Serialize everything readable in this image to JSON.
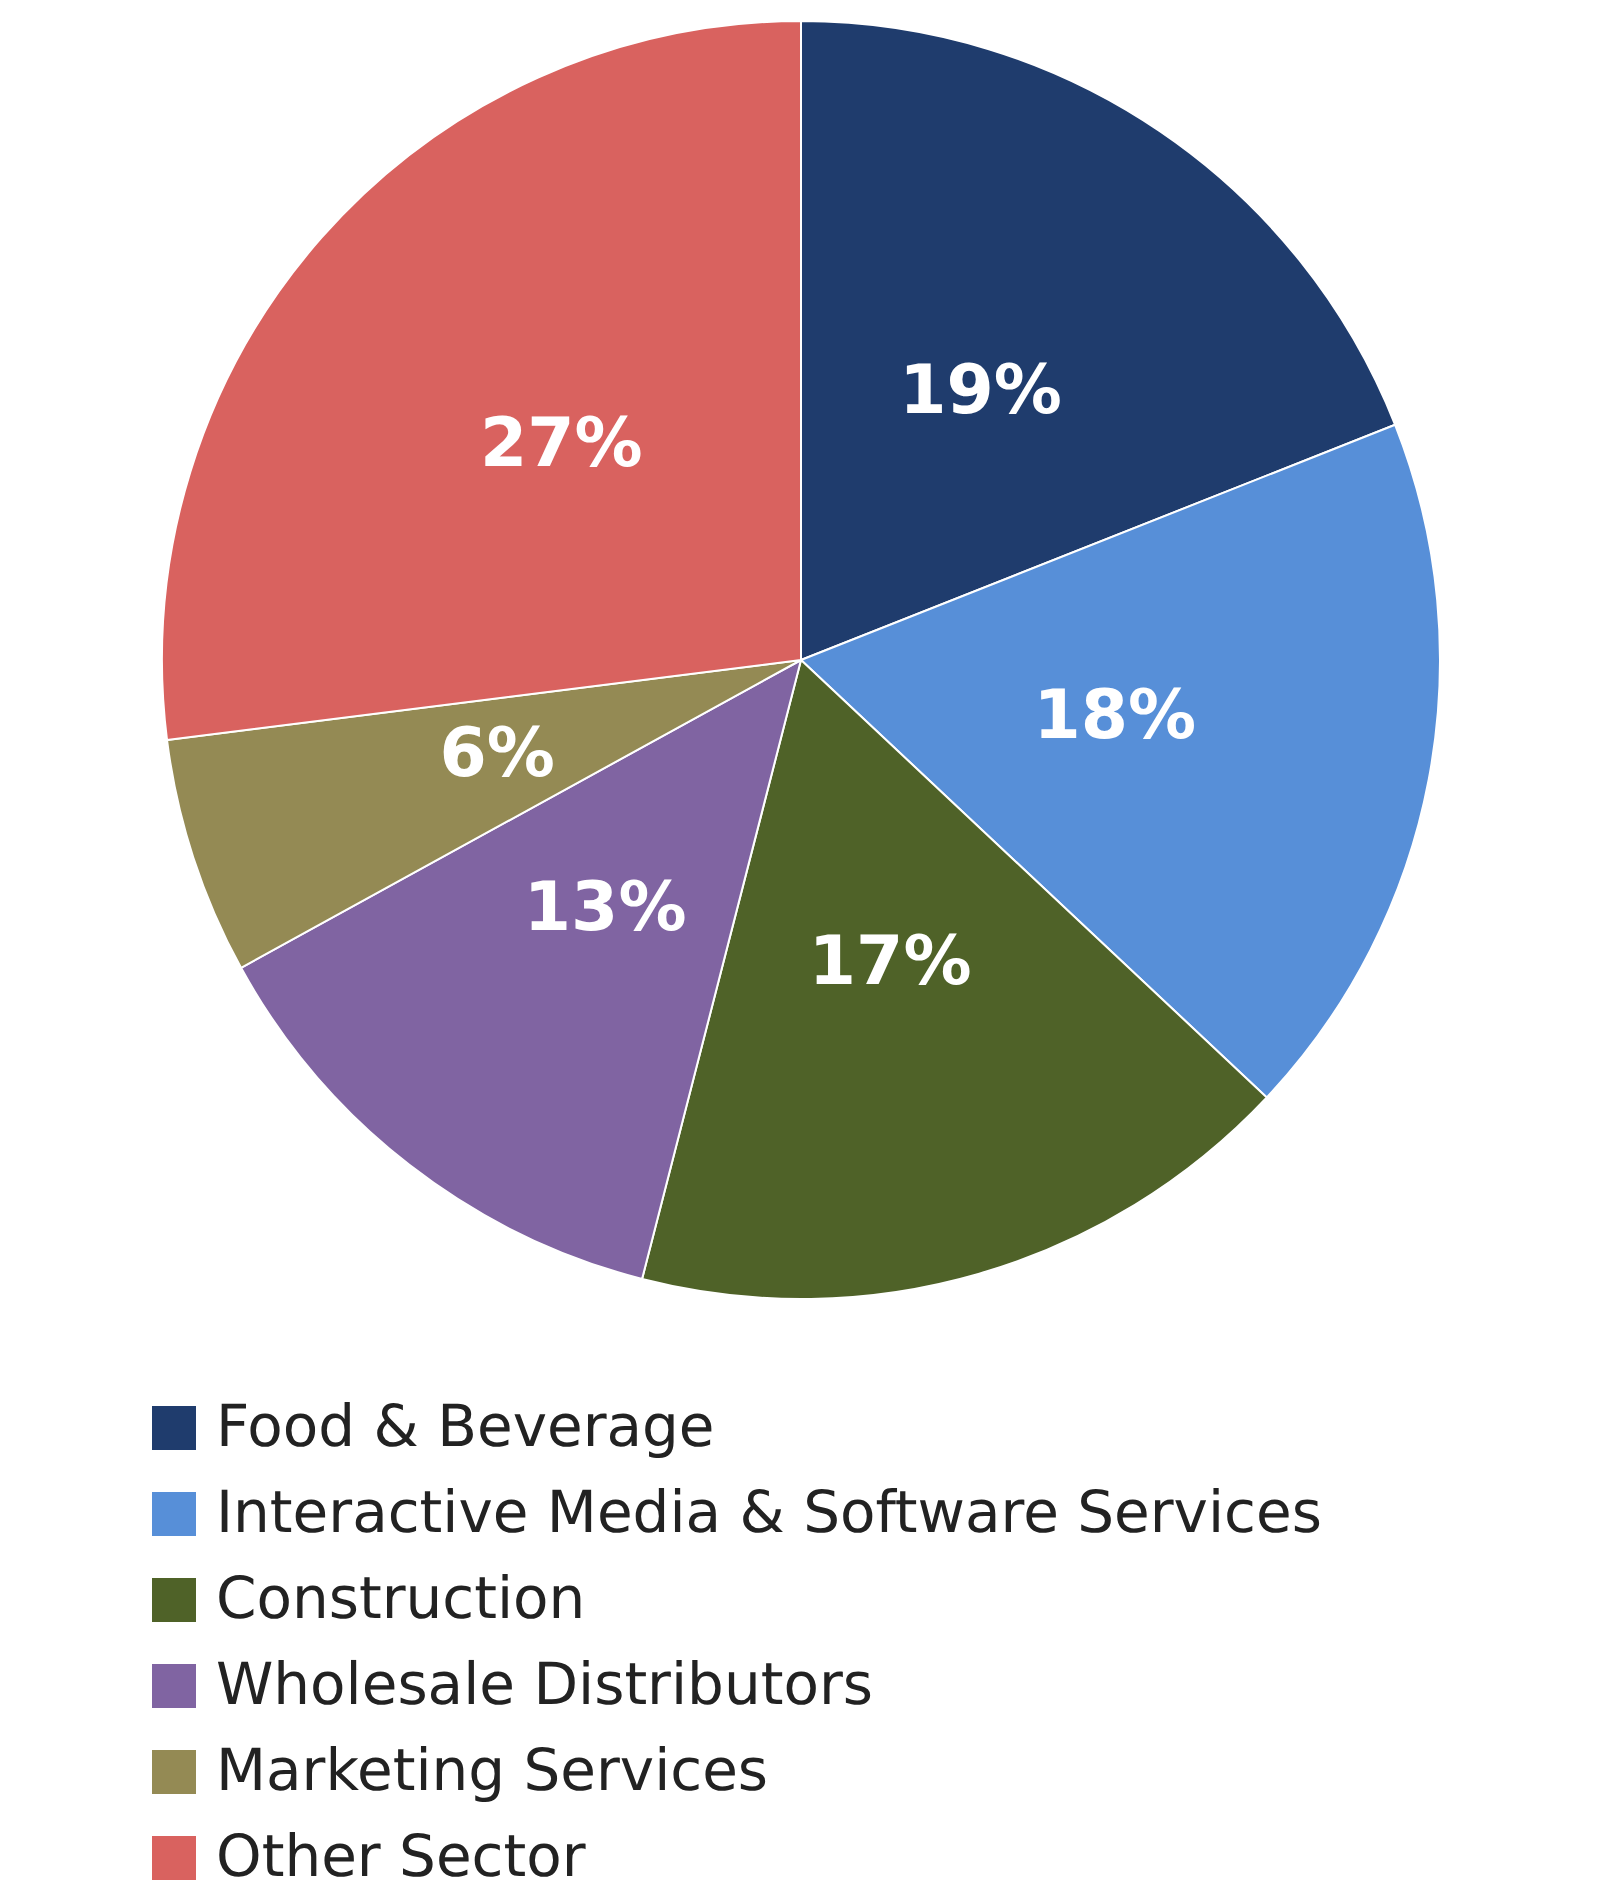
{
  "chart_data": {
    "type": "pie",
    "categories": [
      "Food & Beverage",
      "Interactive Media & Software Services",
      "Construction",
      "Wholesale Distributors",
      "Marketing Services",
      "Other Sector"
    ],
    "values": [
      19,
      18,
      17,
      13,
      6,
      27
    ],
    "colors": [
      "#1f3c6d",
      "#578fd8",
      "#4f6228",
      "#8064a2",
      "#948a54",
      "#d9625f"
    ],
    "value_labels": [
      "19%",
      "18%",
      "17%",
      "13%",
      "6%",
      "27%"
    ],
    "legend": "bottom"
  }
}
